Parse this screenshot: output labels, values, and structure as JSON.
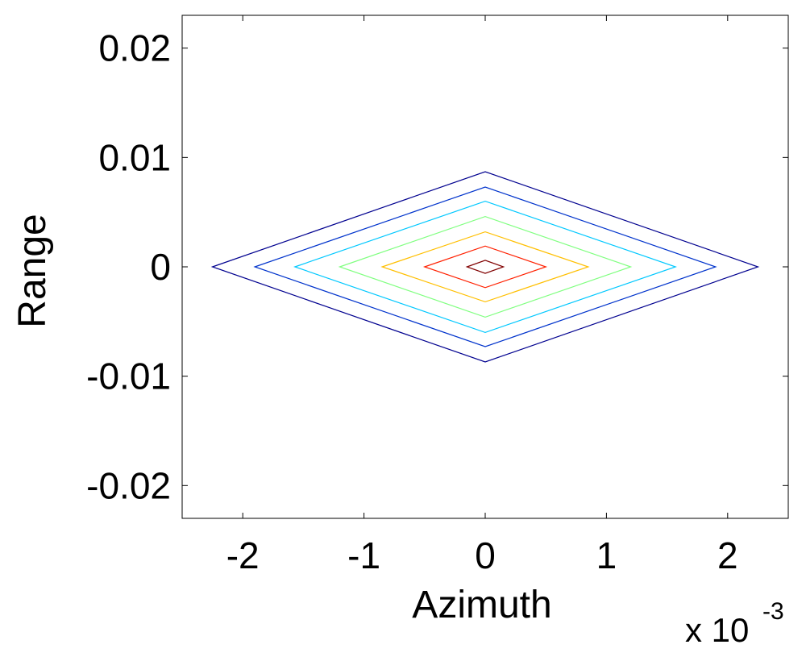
{
  "chart_data": {
    "type": "line",
    "xlabel": "Azimuth",
    "ylabel": "Range",
    "x_multiplier_base": "x 10",
    "x_multiplier_exponent": "-3",
    "xlim": [
      -2.5,
      2.5
    ],
    "ylim": [
      -0.023,
      0.023
    ],
    "x_ticks": [
      -2,
      -1,
      0,
      1,
      2
    ],
    "x_tick_labels": [
      "-2",
      "-1",
      "0",
      "1",
      "2"
    ],
    "y_ticks": [
      0.02,
      0.01,
      0,
      -0.01,
      -0.02
    ],
    "y_tick_labels": [
      "0.02",
      "0.01",
      "0",
      "-0.01",
      "-0.02"
    ],
    "grid": false,
    "contours": [
      {
        "color": "#00008f",
        "x_half": 2.25,
        "y_half": 0.0087
      },
      {
        "color": "#0033cc",
        "x_half": 1.9,
        "y_half": 0.0073
      },
      {
        "color": "#00c8ff",
        "x_half": 1.57,
        "y_half": 0.006
      },
      {
        "color": "#80ff80",
        "x_half": 1.2,
        "y_half": 0.0046
      },
      {
        "color": "#ffbf00",
        "x_half": 0.85,
        "y_half": 0.0032
      },
      {
        "color": "#ff2000",
        "x_half": 0.5,
        "y_half": 0.0019
      },
      {
        "color": "#800000",
        "x_half": 0.15,
        "y_half": 0.0006
      }
    ]
  }
}
